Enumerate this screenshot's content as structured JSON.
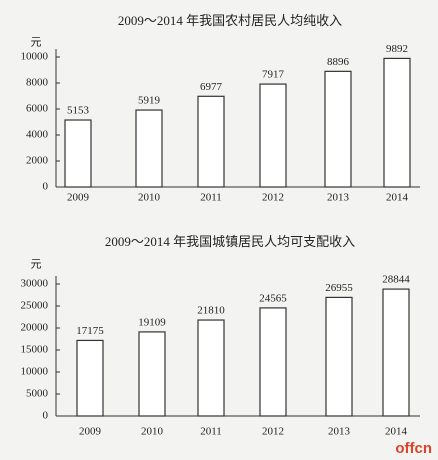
{
  "chart_data": [
    {
      "type": "bar",
      "title": "2009～2014 年我国农村居民人均纯收入",
      "y_unit": "元",
      "categories": [
        "2009",
        "2010",
        "2011",
        "2012",
        "2013",
        "2014"
      ],
      "values": [
        5153,
        5919,
        6977,
        7917,
        8896,
        9892
      ],
      "color": "#ffffff",
      "ylim": [
        0,
        10000
      ],
      "yticks": [
        0,
        2000,
        4000,
        6000,
        8000,
        10000
      ],
      "grid": false
    },
    {
      "type": "bar",
      "title": "2009～2014 年我国城镇居民人均可支配收入",
      "y_unit": "元",
      "categories": [
        "2009",
        "2010",
        "2011",
        "2012",
        "2013",
        "2014"
      ],
      "values": [
        17175,
        19109,
        21810,
        24565,
        26955,
        28844
      ],
      "color": "#ffffff",
      "ylim": [
        0,
        30000
      ],
      "yticks": [
        0,
        5000,
        10000,
        15000,
        20000,
        25000,
        30000
      ],
      "grid": false
    }
  ],
  "watermark": "offcn"
}
